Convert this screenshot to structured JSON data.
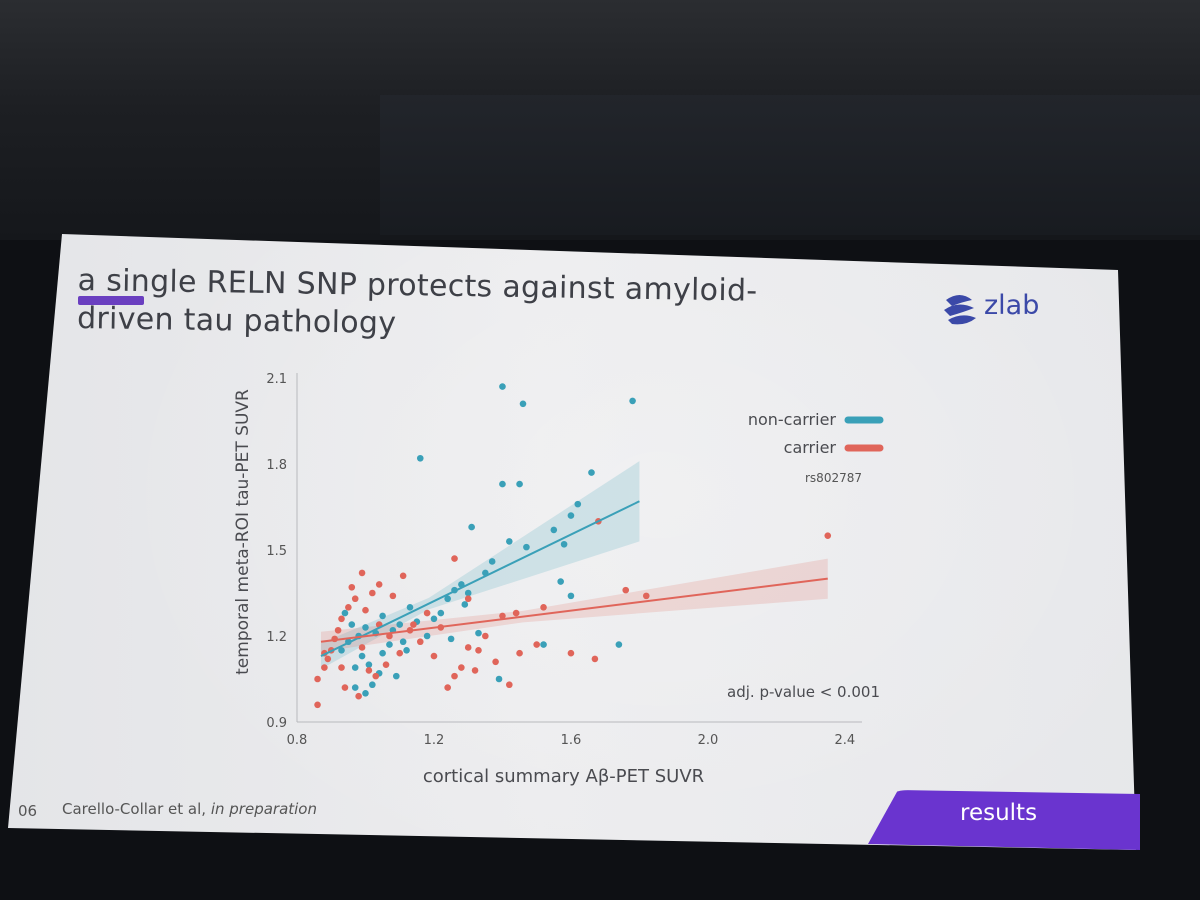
{
  "slide": {
    "title": "a single RELN SNP protects against amyloid-driven tau pathology",
    "logo_text": "zlab",
    "slide_number": "06",
    "citation_authors": "Carello-Collar et al, ",
    "citation_status": "in preparation",
    "section_tab": "results",
    "accent_color": "#6a3fc0"
  },
  "chart_data": {
    "type": "scatter",
    "xlabel": "cortical summary Aβ-PET SUVR",
    "ylabel": "temporal meta-ROI tau-PET SUVR",
    "xlim": [
      0.8,
      2.45
    ],
    "ylim": [
      0.9,
      2.1
    ],
    "xticks": [
      "0.8",
      "1.2",
      "1.6",
      "2.0",
      "2.4"
    ],
    "yticks": [
      "0.9",
      "1.2",
      "1.5",
      "1.8",
      "2.1"
    ],
    "legend_subtitle": "rs802787",
    "annotation": "adj. p-value < 0.001",
    "legend_position": "top-right",
    "series": [
      {
        "name": "non-carrier",
        "color": "#3aa0b8",
        "fit": {
          "x": [
            0.87,
            1.8
          ],
          "y": [
            1.13,
            1.67
          ]
        },
        "points": [
          [
            1.4,
            2.07
          ],
          [
            1.46,
            2.01
          ],
          [
            1.78,
            2.02
          ],
          [
            1.16,
            1.82
          ],
          [
            1.4,
            1.73
          ],
          [
            1.45,
            1.73
          ],
          [
            1.66,
            1.77
          ],
          [
            1.62,
            1.66
          ],
          [
            1.6,
            1.62
          ],
          [
            1.55,
            1.57
          ],
          [
            1.31,
            1.58
          ],
          [
            1.42,
            1.53
          ],
          [
            1.47,
            1.51
          ],
          [
            1.58,
            1.52
          ],
          [
            1.37,
            1.46
          ],
          [
            1.35,
            1.42
          ],
          [
            1.28,
            1.38
          ],
          [
            1.26,
            1.36
          ],
          [
            1.3,
            1.35
          ],
          [
            1.24,
            1.33
          ],
          [
            1.22,
            1.28
          ],
          [
            1.15,
            1.25
          ],
          [
            1.1,
            1.24
          ],
          [
            1.05,
            1.27
          ],
          [
            1.08,
            1.22
          ],
          [
            1.03,
            1.21
          ],
          [
            1.0,
            1.23
          ],
          [
            0.98,
            1.2
          ],
          [
            0.96,
            1.24
          ],
          [
            0.95,
            1.18
          ],
          [
            0.93,
            1.15
          ],
          [
            0.99,
            1.13
          ],
          [
            1.01,
            1.1
          ],
          [
            0.97,
            1.09
          ],
          [
            1.04,
            1.07
          ],
          [
            1.09,
            1.06
          ],
          [
            1.12,
            1.15
          ],
          [
            1.18,
            1.2
          ],
          [
            1.25,
            1.19
          ],
          [
            1.33,
            1.21
          ],
          [
            1.39,
            1.05
          ],
          [
            1.52,
            1.17
          ],
          [
            1.74,
            1.17
          ],
          [
            1.57,
            1.39
          ],
          [
            1.6,
            1.34
          ],
          [
            1.02,
            1.03
          ],
          [
            1.0,
            1.0
          ],
          [
            0.97,
            1.02
          ],
          [
            1.07,
            1.17
          ],
          [
            1.13,
            1.3
          ],
          [
            1.2,
            1.26
          ],
          [
            0.94,
            1.28
          ],
          [
            1.05,
            1.14
          ],
          [
            1.11,
            1.18
          ],
          [
            1.29,
            1.31
          ]
        ]
      },
      {
        "name": "carrier",
        "color": "#e0655a",
        "fit": {
          "x": [
            0.87,
            2.35
          ],
          "y": [
            1.18,
            1.4
          ]
        },
        "points": [
          [
            2.35,
            1.55
          ],
          [
            1.68,
            1.6
          ],
          [
            1.76,
            1.36
          ],
          [
            1.82,
            1.34
          ],
          [
            1.52,
            1.3
          ],
          [
            1.44,
            1.28
          ],
          [
            1.4,
            1.27
          ],
          [
            1.35,
            1.2
          ],
          [
            1.3,
            1.16
          ],
          [
            1.45,
            1.14
          ],
          [
            1.6,
            1.14
          ],
          [
            1.67,
            1.12
          ],
          [
            1.5,
            1.17
          ],
          [
            1.42,
            1.03
          ],
          [
            1.38,
            1.11
          ],
          [
            1.32,
            1.08
          ],
          [
            1.26,
            1.06
          ],
          [
            1.24,
            1.02
          ],
          [
            1.2,
            1.13
          ],
          [
            1.16,
            1.18
          ],
          [
            1.13,
            1.22
          ],
          [
            1.08,
            1.34
          ],
          [
            1.04,
            1.38
          ],
          [
            1.02,
            1.35
          ],
          [
            0.99,
            1.42
          ],
          [
            0.97,
            1.33
          ],
          [
            0.95,
            1.3
          ],
          [
            0.93,
            1.26
          ],
          [
            0.92,
            1.22
          ],
          [
            0.91,
            1.19
          ],
          [
            0.9,
            1.15
          ],
          [
            0.89,
            1.12
          ],
          [
            0.88,
            1.09
          ],
          [
            0.86,
            1.05
          ],
          [
            0.94,
            1.02
          ],
          [
            0.98,
            0.99
          ],
          [
            1.03,
            1.06
          ],
          [
            1.06,
            1.1
          ],
          [
            1.1,
            1.14
          ],
          [
            1.11,
            1.41
          ],
          [
            1.14,
            1.24
          ],
          [
            1.18,
            1.28
          ],
          [
            1.22,
            1.23
          ],
          [
            1.26,
            1.47
          ],
          [
            1.3,
            1.33
          ],
          [
            0.88,
            1.14
          ],
          [
            0.96,
            1.37
          ],
          [
            1.0,
            1.29
          ],
          [
            1.07,
            1.2
          ],
          [
            0.99,
            1.16
          ],
          [
            1.01,
            1.08
          ],
          [
            0.93,
            1.09
          ],
          [
            1.04,
            1.24
          ],
          [
            0.86,
            0.96
          ],
          [
            1.28,
            1.09
          ],
          [
            1.33,
            1.15
          ]
        ]
      }
    ]
  }
}
